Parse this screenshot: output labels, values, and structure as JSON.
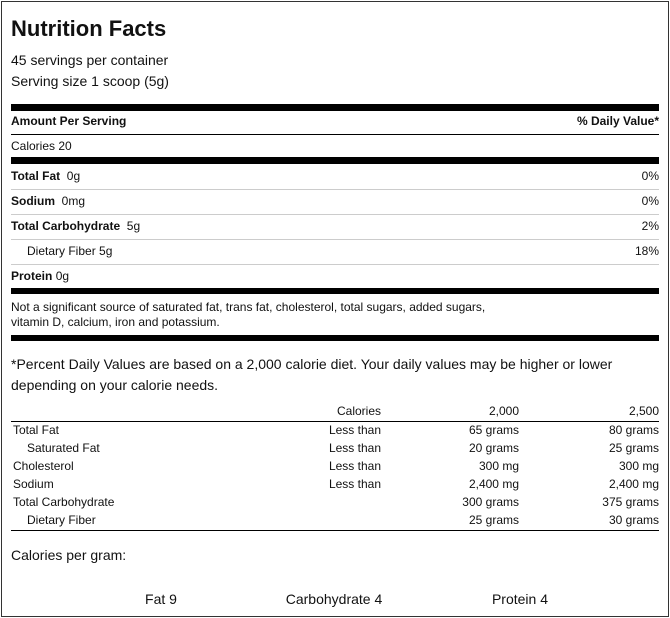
{
  "title": "Nutrition Facts",
  "servings_per_container": "45 servings per container",
  "serving_size": "Serving size 1 scoop (5g)",
  "amount_per_serving": "Amount Per Serving",
  "daily_value_header": "% Daily Value*",
  "calories": "Calories 20",
  "nutrients": [
    {
      "name": "Total Fat",
      "amount": "0g",
      "dv": "0%",
      "bold": true
    },
    {
      "name": "Sodium",
      "amount": "0mg",
      "dv": "0%",
      "bold": true
    },
    {
      "name": "Total Carbohydrate",
      "amount": "5g",
      "dv": "2%",
      "bold": true
    },
    {
      "name": "Dietary Fiber 5g",
      "amount": "",
      "dv": "18%",
      "bold": false
    },
    {
      "name": "Protein",
      "amount": "0g",
      "dv": "",
      "bold": true
    }
  ],
  "not_significant": [
    "Not a significant source of saturated fat, trans fat, cholesterol, total sugars, added sugars,",
    "vitamin D, calcium, iron and potassium."
  ],
  "footnote": [
    "*Percent Daily Values are based on a 2,000 calorie diet. Your daily values may be higher or lower",
    "depending on your calorie needs."
  ],
  "dv_table": {
    "header": [
      "",
      "Calories",
      "2,000",
      "2,500"
    ],
    "rows": [
      [
        "Total Fat",
        "Less than",
        "65 grams",
        "80 grams"
      ],
      [
        "Saturated Fat",
        "Less than",
        "20 grams",
        "25 grams"
      ],
      [
        "Cholesterol",
        "Less than",
        "300 mg",
        "300 mg"
      ],
      [
        "Sodium",
        "Less than",
        "2,400 mg",
        "2,400 mg"
      ],
      [
        "Total Carbohydrate",
        "",
        "300 grams",
        "375 grams"
      ],
      [
        "Dietary Fiber",
        "",
        "25 grams",
        "30 grams"
      ]
    ]
  },
  "calories_per_gram": {
    "label": "Calories per gram:",
    "items": [
      "Fat 9",
      "Carbohydrate 4",
      "Protein 4"
    ]
  }
}
